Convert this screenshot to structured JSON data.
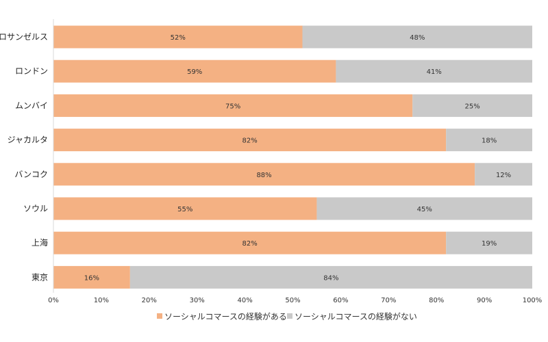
{
  "chart_data": {
    "type": "bar",
    "orientation": "horizontal",
    "stacked": true,
    "percent_stacked": true,
    "categories": [
      "ロサンゼルス",
      "ロンドン",
      "ムンバイ",
      "ジャカルタ",
      "バンコク",
      "ソウル",
      "上海",
      "東京"
    ],
    "series": [
      {
        "name": "ソーシャルコマースの経験がある",
        "color": "#F4B183",
        "values": [
          52,
          59,
          75,
          82,
          88,
          55,
          82,
          16
        ],
        "labels": [
          "52%",
          "59%",
          "75%",
          "82%",
          "88%",
          "55%",
          "82%",
          "16%"
        ]
      },
      {
        "name": "ソーシャルコマースの経験がない",
        "color": "#C9C9C9",
        "values": [
          48,
          41,
          25,
          18,
          12,
          45,
          19,
          84
        ],
        "labels": [
          "48%",
          "41%",
          "25%",
          "18%",
          "12%",
          "45%",
          "19%",
          "84%"
        ]
      }
    ],
    "xlim": [
      0,
      100
    ],
    "xticks": [
      "0%",
      "10%",
      "20%",
      "30%",
      "40%",
      "50%",
      "60%",
      "70%",
      "80%",
      "90%",
      "100%"
    ],
    "title": "",
    "xlabel": "",
    "ylabel": "",
    "grid": false,
    "legend_position": "bottom"
  }
}
